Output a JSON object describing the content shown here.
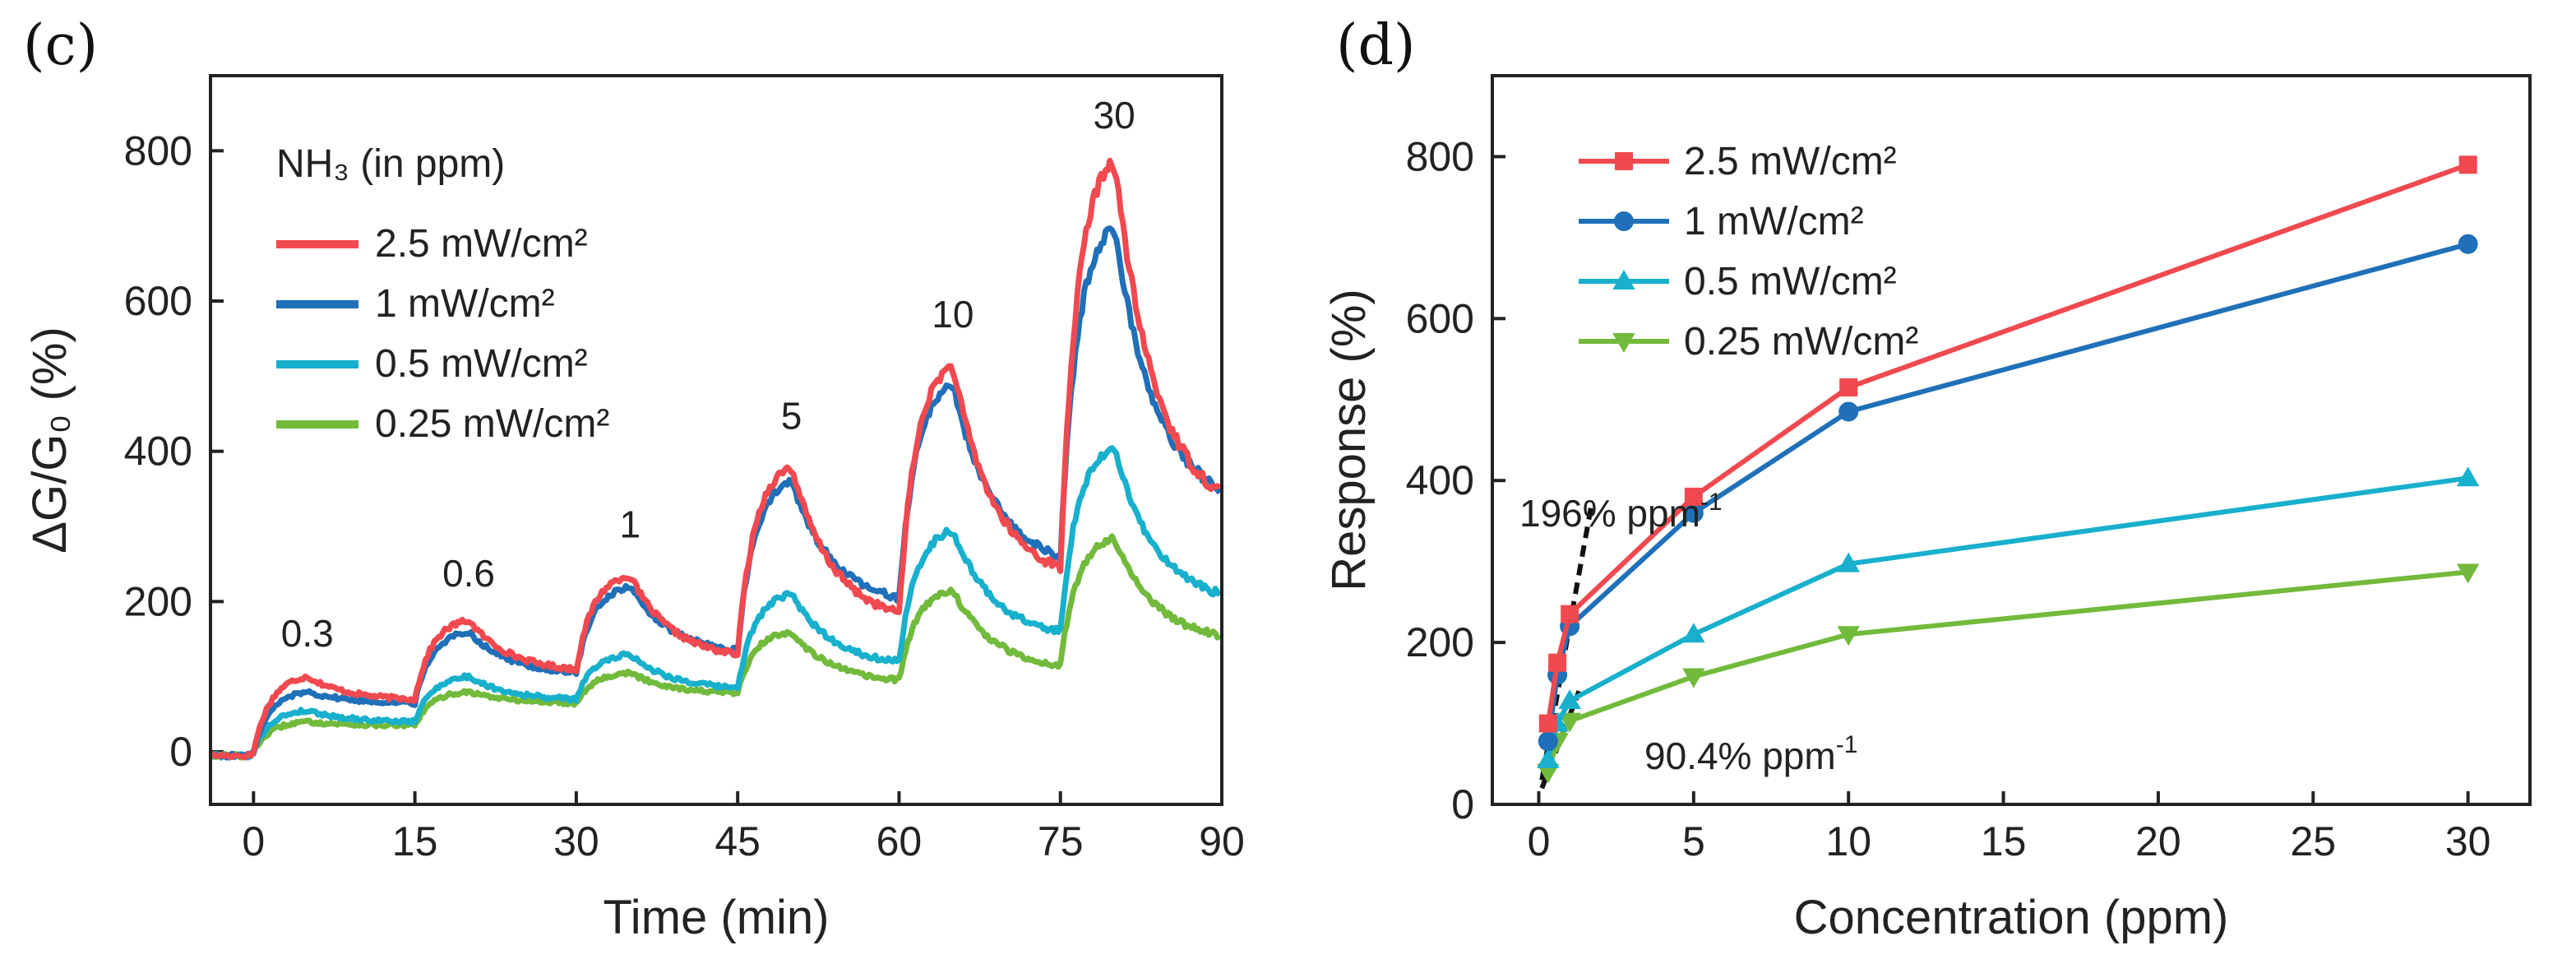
{
  "colors": {
    "2.5": "#f0494f",
    "1": "#1f70b8",
    "0.5": "#18b0cc",
    "0.25": "#72ba3b"
  },
  "chart_data": [
    {
      "panel_label": "(c)",
      "type": "line",
      "title": "",
      "xlabel": "Time (min)",
      "ylabel": "ΔG/G₀ (%)",
      "xlim": [
        -4,
        90
      ],
      "ylim": [
        -70,
        900
      ],
      "xticks": [
        "0",
        "15",
        "30",
        "45",
        "60",
        "75",
        "90"
      ],
      "yticks": [
        "0",
        "200",
        "400",
        "600",
        "800"
      ],
      "legend_title": "NH₃ (in ppm)",
      "legend_position": "top-left",
      "annotations": [
        {
          "text": "0.3",
          "x": 5,
          "y": 140
        },
        {
          "text": "0.6",
          "x": 20,
          "y": 220
        },
        {
          "text": "1",
          "x": 35,
          "y": 285
        },
        {
          "text": "5",
          "x": 50,
          "y": 430
        },
        {
          "text": "10",
          "x": 65,
          "y": 565
        },
        {
          "text": "30",
          "x": 80,
          "y": 830
        }
      ],
      "pulses": [
        {
          "on": 0,
          "off": 5,
          "end": 15,
          "ppm": "0.3"
        },
        {
          "on": 15,
          "off": 20,
          "end": 30,
          "ppm": "0.6"
        },
        {
          "on": 30,
          "off": 35,
          "end": 45,
          "ppm": "1"
        },
        {
          "on": 45,
          "off": 50,
          "end": 60,
          "ppm": "5"
        },
        {
          "on": 60,
          "off": 65,
          "end": 75,
          "ppm": "10"
        },
        {
          "on": 75,
          "off": 80,
          "end": 90,
          "ppm": "30"
        }
      ],
      "series": [
        {
          "name": "2.5 mW/cm²",
          "key": "2.5",
          "peaks": [
            100,
            175,
            235,
            380,
            515,
            790
          ],
          "valleys": [
            70,
            110,
            130,
            185,
            245,
            345
          ]
        },
        {
          "name": "1 mW/cm²",
          "key": "1",
          "peaks": [
            80,
            160,
            220,
            360,
            490,
            700
          ],
          "valleys": [
            65,
            105,
            135,
            205,
            260,
            350
          ]
        },
        {
          "name": "0.5 mW/cm²",
          "key": "0.5",
          "peaks": [
            55,
            100,
            130,
            210,
            295,
            405
          ],
          "valleys": [
            40,
            70,
            85,
            120,
            160,
            210
          ]
        },
        {
          "name": "0.25 mW/cm²",
          "key": "0.25",
          "peaks": [
            40,
            80,
            105,
            160,
            215,
            285
          ],
          "valleys": [
            35,
            65,
            78,
            95,
            115,
            155
          ]
        }
      ]
    },
    {
      "panel_label": "(d)",
      "type": "line",
      "title": "",
      "xlabel": "Concentration (ppm)",
      "ylabel": "Response (%)",
      "xlim": [
        -1.5,
        32
      ],
      "ylim": [
        0,
        900
      ],
      "xtick_values": [
        0,
        5,
        10,
        15,
        20,
        25,
        30
      ],
      "xticks": [
        "0",
        "5",
        "10",
        "15",
        "20",
        "25",
        "30"
      ],
      "ytick_values": [
        0,
        200,
        400,
        600,
        800
      ],
      "yticks": [
        "0",
        "200",
        "400",
        "600",
        "800"
      ],
      "x": [
        0.3,
        0.6,
        1,
        5,
        10,
        30
      ],
      "legend_position": "top-left",
      "series": [
        {
          "name": "2.5 mW/cm²",
          "key": "2.5",
          "marker": "square",
          "values": [
            100,
            175,
            235,
            380,
            515,
            790
          ]
        },
        {
          "name": "1 mW/cm²",
          "key": "1",
          "marker": "circle",
          "values": [
            78,
            160,
            220,
            360,
            485,
            692
          ]
        },
        {
          "name": "0.5 mW/cm²",
          "key": "0.5",
          "marker": "triangle-up",
          "values": [
            55,
            100,
            128,
            210,
            297,
            403
          ]
        },
        {
          "name": "0.25 mW/cm²",
          "key": "0.25",
          "marker": "triangle-down",
          "values": [
            40,
            78,
            103,
            158,
            210,
            287
          ]
        }
      ],
      "annotations": [
        {
          "text": "196% ppm",
          "superscript": "-1",
          "fit": {
            "x0": 0.1,
            "y0": 30,
            "x1": 1.7,
            "y1": 370
          }
        },
        {
          "text": "90.4% ppm",
          "superscript": "-1",
          "fit": {
            "x0": 0.1,
            "y0": 20,
            "x1": 1.3,
            "y1": 140
          }
        }
      ]
    }
  ]
}
